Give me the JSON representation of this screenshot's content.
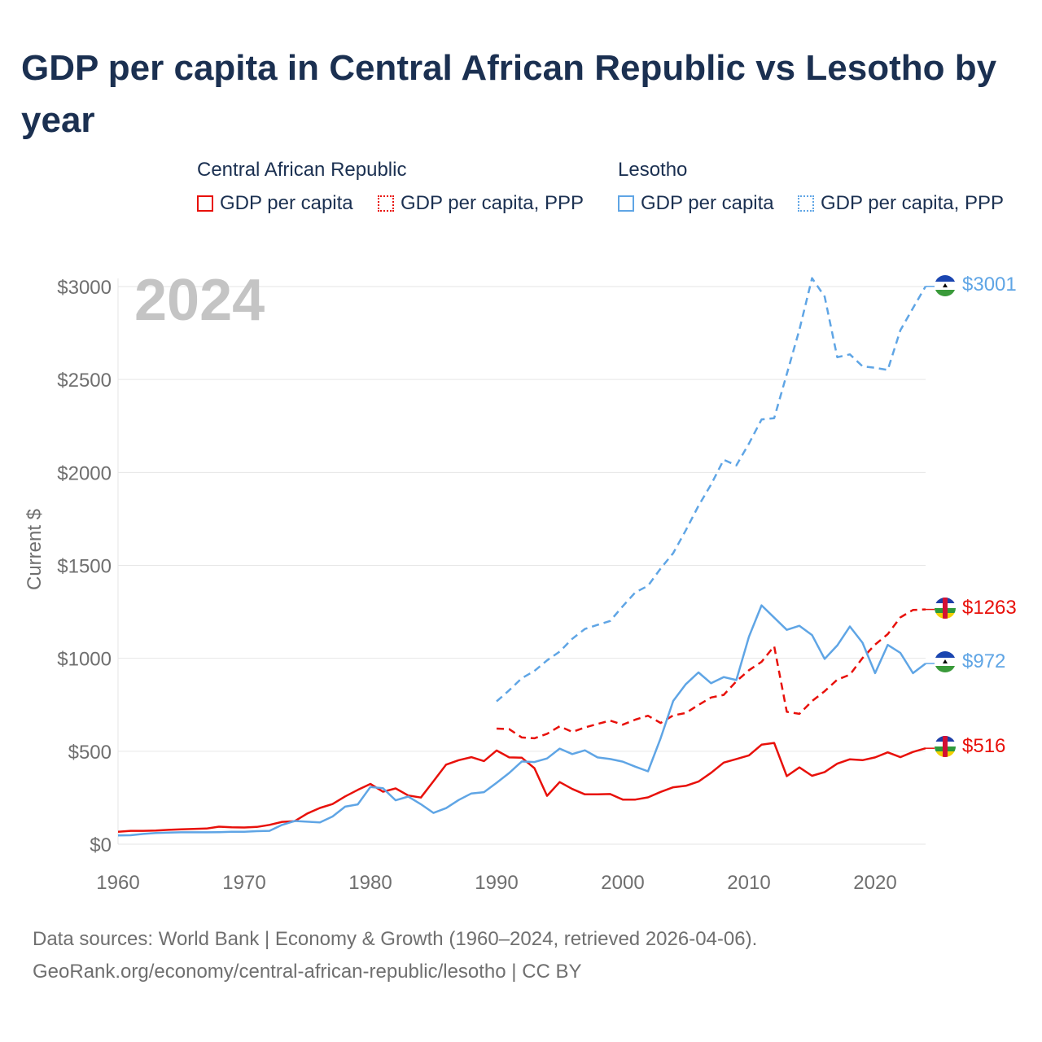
{
  "title": "GDP per capita in Central African Republic vs Lesotho by year",
  "legend": {
    "group1": "Central African Republic",
    "group2": "Lesotho",
    "car_gdp": "GDP per capita",
    "car_ppp": "GDP per capita, PPP",
    "les_gdp": "GDP per capita",
    "les_ppp": "GDP per capita, PPP"
  },
  "year_watermark": "2024",
  "end_labels": {
    "les_ppp": "$3001",
    "car_ppp": "$1263",
    "les_gdp": "$972",
    "car_gdp": "$516"
  },
  "footer": {
    "line1": "Data sources: World Bank | Economy & Growth (1960–2024, retrieved 2026-04-06).",
    "line2": "GeoRank.org/economy/central-african-republic/lesotho | CC BY"
  },
  "colors": {
    "car": "#e8100a",
    "lesotho": "#5fa5e5",
    "grid": "#e6e6e6",
    "axis_text": "#6f6f6f"
  },
  "chart_data": {
    "type": "line",
    "title": "GDP per capita in Central African Republic vs Lesotho by year",
    "xlabel": "",
    "ylabel": "Current $",
    "xlim": [
      1960,
      2024
    ],
    "ylim": [
      0,
      3000
    ],
    "x_ticks": [
      1960,
      1970,
      1980,
      1990,
      2000,
      2010,
      2020
    ],
    "x_tick_labels": [
      "1960",
      "1970",
      "1980",
      "1990",
      "2000",
      "2010",
      "2020"
    ],
    "y_ticks": [
      0,
      500,
      1000,
      1500,
      2000,
      2500,
      3000
    ],
    "y_tick_labels": [
      "$0",
      "$500",
      "$1000",
      "$1500",
      "$2000",
      "$2500",
      "$3000"
    ],
    "series": [
      {
        "name": "Central African Republic GDP per capita",
        "key": "car_gdp",
        "start_year": 1960,
        "style": "solid",
        "color": "#e8100a",
        "values": [
          67,
          72,
          72,
          73,
          77,
          80,
          82,
          84,
          94,
          91,
          90,
          93,
          104,
          120,
          124,
          165,
          195,
          216,
          257,
          292,
          324,
          282,
          300,
          262,
          251,
          339,
          428,
          452,
          468,
          447,
          504,
          467,
          465,
          409,
          260,
          334,
          297,
          268,
          268,
          270,
          240,
          240,
          252,
          281,
          306,
          314,
          337,
          384,
          439,
          458,
          478,
          535,
          545,
          366,
          413,
          368,
          388,
          433,
          457,
          452,
          467,
          494,
          468,
          496,
          516
        ]
      },
      {
        "name": "Central African Republic GDP per capita, PPP",
        "key": "car_ppp",
        "start_year": 1990,
        "style": "dashed",
        "color": "#e8100a",
        "values": [
          622,
          619,
          574,
          570,
          594,
          634,
          604,
          628,
          647,
          665,
          643,
          670,
          691,
          652,
          693,
          706,
          749,
          789,
          803,
          876,
          936,
          981,
          1065,
          712,
          701,
          770,
          823,
          885,
          912,
          1001,
          1074,
          1130,
          1220,
          1260,
          1263
        ]
      },
      {
        "name": "Lesotho GDP per capita",
        "key": "les_gdp",
        "start_year": 1960,
        "style": "solid",
        "color": "#5fa5e5",
        "values": [
          47,
          48,
          55,
          60,
          62,
          64,
          64,
          64,
          65,
          67,
          67,
          70,
          72,
          104,
          125,
          121,
          117,
          149,
          202,
          214,
          308,
          301,
          236,
          256,
          215,
          168,
          194,
          238,
          273,
          280,
          330,
          383,
          445,
          442,
          461,
          514,
          485,
          505,
          467,
          458,
          444,
          417,
          392,
          570,
          771,
          861,
          924,
          866,
          899,
          883,
          1116,
          1285,
          1219,
          1153,
          1175,
          1125,
          997,
          1069,
          1171,
          1084,
          920,
          1072,
          1029,
          920,
          972
        ]
      },
      {
        "name": "Lesotho GDP per capita, PPP",
        "key": "les_ppp",
        "start_year": 1990,
        "style": "dashed",
        "color": "#5fa5e5",
        "values": [
          768,
          828,
          893,
          932,
          989,
          1036,
          1105,
          1158,
          1180,
          1201,
          1280,
          1355,
          1390,
          1483,
          1566,
          1689,
          1820,
          1935,
          2068,
          2038,
          2155,
          2285,
          2292,
          2529,
          2768,
          3045,
          2946,
          2620,
          2635,
          2571,
          2563,
          2551,
          2765,
          2884,
          3001
        ]
      }
    ]
  }
}
